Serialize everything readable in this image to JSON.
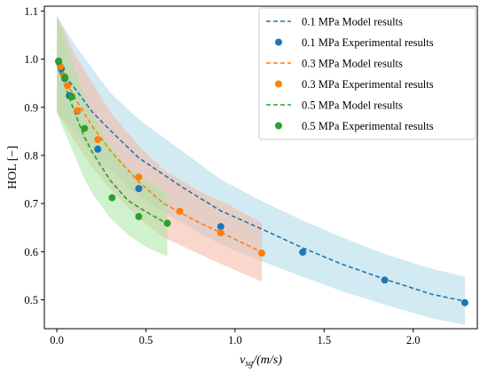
{
  "chart_data": {
    "type": "line",
    "title": "",
    "xlabel": "v_sg/(m/s)",
    "ylabel": "HOL [−]",
    "xlim": [
      -0.07,
      2.36
    ],
    "ylim": [
      0.44,
      1.11
    ],
    "xticks": [
      0.0,
      0.5,
      1.0,
      1.5,
      2.0
    ],
    "xtick_labels": [
      "0.0",
      "0.5",
      "1.0",
      "1.5",
      "2.0"
    ],
    "yticks": [
      0.5,
      0.6,
      0.7,
      0.8,
      0.9,
      1.0,
      1.1
    ],
    "ytick_labels": [
      "0.5",
      "0.6",
      "0.7",
      "0.8",
      "0.9",
      "1.0",
      "1.1"
    ],
    "grid": false,
    "legend_position": "top-right",
    "series": [
      {
        "name": "0.1 MPa Model results",
        "kind": "model",
        "color": "#1f77b4",
        "band_color": "#add8e6",
        "x": [
          0.0,
          0.05,
          0.1,
          0.2,
          0.3,
          0.46,
          0.7,
          0.92,
          1.15,
          1.38,
          1.6,
          1.84,
          2.1,
          2.29
        ],
        "y": [
          0.99,
          0.963,
          0.94,
          0.89,
          0.852,
          0.795,
          0.735,
          0.685,
          0.647,
          0.608,
          0.574,
          0.543,
          0.512,
          0.497
        ],
        "band_upper": [
          1.09,
          1.06,
          1.03,
          0.98,
          0.93,
          0.875,
          0.81,
          0.75,
          0.705,
          0.665,
          0.63,
          0.595,
          0.565,
          0.548
        ],
        "band_lower": [
          0.89,
          0.87,
          0.85,
          0.8,
          0.77,
          0.715,
          0.66,
          0.615,
          0.58,
          0.548,
          0.518,
          0.49,
          0.462,
          0.448
        ]
      },
      {
        "name": "0.1 MPa Experimental results",
        "kind": "experimental",
        "color": "#1f77b4",
        "x": [
          0.01,
          0.025,
          0.045,
          0.07,
          0.115,
          0.23,
          0.46,
          0.92,
          1.38,
          1.84,
          2.29
        ],
        "y": [
          0.996,
          0.98,
          0.96,
          0.924,
          0.892,
          0.813,
          0.731,
          0.652,
          0.599,
          0.541,
          0.494
        ]
      },
      {
        "name": "0.3 MPa Model results",
        "kind": "model",
        "color": "#ff7f0e",
        "band_color": "#f4b6a3",
        "x": [
          0.0,
          0.05,
          0.1,
          0.2,
          0.3,
          0.46,
          0.6,
          0.8,
          0.95,
          1.15
        ],
        "y": [
          0.99,
          0.955,
          0.92,
          0.86,
          0.81,
          0.745,
          0.7,
          0.66,
          0.635,
          0.599
        ],
        "band_upper": [
          1.09,
          1.05,
          1.01,
          0.95,
          0.89,
          0.82,
          0.77,
          0.725,
          0.7,
          0.66
        ],
        "band_lower": [
          0.89,
          0.86,
          0.83,
          0.775,
          0.73,
          0.67,
          0.63,
          0.595,
          0.57,
          0.538
        ]
      },
      {
        "name": "0.3 MPa Experimental results",
        "kind": "experimental",
        "color": "#ff7f0e",
        "x": [
          0.02,
          0.04,
          0.06,
          0.115,
          0.23,
          0.46,
          0.69,
          0.92,
          1.15
        ],
        "y": [
          0.985,
          0.965,
          0.945,
          0.893,
          0.833,
          0.755,
          0.684,
          0.639,
          0.597
        ]
      },
      {
        "name": "0.5 MPa Model results",
        "kind": "model",
        "color": "#2ca02c",
        "band_color": "#a8e6a3",
        "x": [
          0.0,
          0.03,
          0.06,
          0.1,
          0.15,
          0.2,
          0.3,
          0.4,
          0.5,
          0.62
        ],
        "y": [
          0.99,
          0.96,
          0.93,
          0.89,
          0.842,
          0.806,
          0.748,
          0.706,
          0.683,
          0.658
        ],
        "band_upper": [
          1.09,
          1.06,
          1.02,
          0.98,
          0.93,
          0.885,
          0.82,
          0.775,
          0.75,
          0.72
        ],
        "band_lower": [
          0.89,
          0.86,
          0.835,
          0.8,
          0.755,
          0.72,
          0.67,
          0.635,
          0.61,
          0.59
        ]
      },
      {
        "name": "0.5 MPa Experimental results",
        "kind": "experimental",
        "color": "#2ca02c",
        "x": [
          0.01,
          0.045,
          0.085,
          0.155,
          0.31,
          0.46,
          0.62
        ],
        "y": [
          0.995,
          0.962,
          0.922,
          0.856,
          0.712,
          0.673,
          0.659
        ]
      }
    ]
  }
}
